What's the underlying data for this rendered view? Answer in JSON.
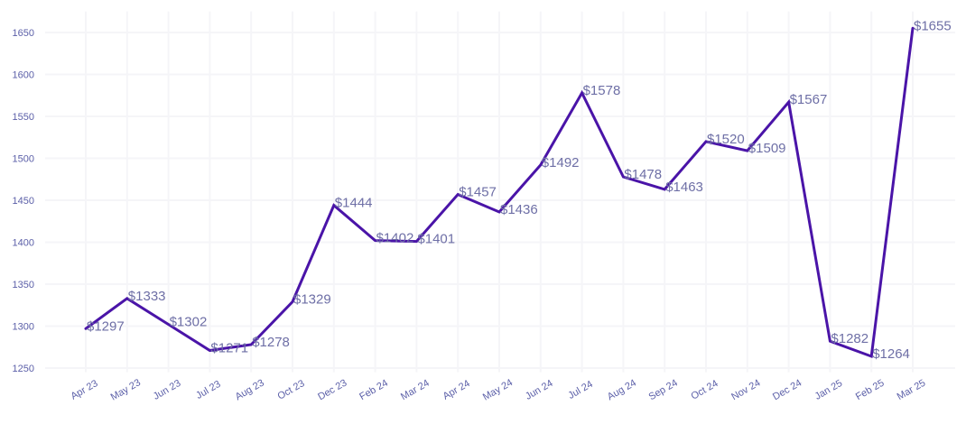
{
  "chart_data": {
    "type": "line",
    "title": "",
    "xlabel": "",
    "ylabel": "",
    "categories": [
      "Apr 23",
      "May 23",
      "Jun 23",
      "Jul 23",
      "Aug 23",
      "Oct 23",
      "Dec 23",
      "Feb 24",
      "Mar 24",
      "Apr 24",
      "May 24",
      "Jun 24",
      "Jul 24",
      "Aug 24",
      "Sep 24",
      "Oct 24",
      "Nov 24",
      "Dec 24",
      "Jan 25",
      "Feb 25",
      "Mar 25"
    ],
    "series": [
      {
        "values": [
          1297,
          1333,
          1302,
          1271,
          1278,
          1329,
          1444,
          1402,
          1401,
          1457,
          1436,
          1492,
          1578,
          1478,
          1463,
          1520,
          1509,
          1567,
          1282,
          1264,
          1655
        ]
      }
    ],
    "data_labels": [
      "$1297",
      "$1333",
      "$1302",
      "$1271",
      "$1278",
      "$1329",
      "$1444",
      "$1402",
      "$1401",
      "$1457",
      "$1436",
      "$1492",
      "$1578",
      "$1478",
      "$1463",
      "$1520",
      "$1509",
      "$1567",
      "$1282",
      "$1264",
      "$1655"
    ],
    "y_ticks": [
      "1250",
      "1300",
      "1350",
      "1400",
      "1450",
      "1500",
      "1550",
      "1600",
      "1650"
    ],
    "ylim": [
      1245,
      1675
    ],
    "grid": true,
    "legend": "none",
    "colors": {
      "line": "#4a14a8",
      "tick_text": "#5b5fa8",
      "label_text": "#6e6fa6",
      "grid": "#f5f5f8"
    }
  }
}
